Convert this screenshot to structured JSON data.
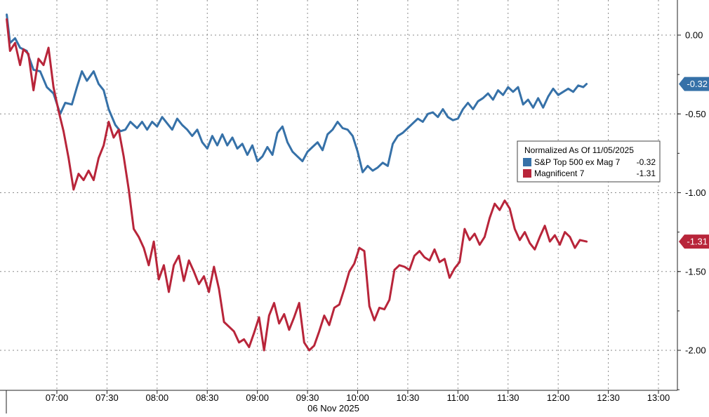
{
  "chart_data": {
    "type": "line",
    "xlabel": "06 Nov 2025",
    "ylabel": "",
    "title": "",
    "x_ticks": [
      "07:00",
      "07:30",
      "08:00",
      "08:30",
      "09:00",
      "09:30",
      "10:00",
      "10:30",
      "11:00",
      "11:30",
      "12:00",
      "12:30",
      "13:00"
    ],
    "y_ticks": [
      "0.00",
      "-0.50",
      "-1.00",
      "-1.50",
      "-2.00"
    ],
    "y_tick_values": [
      0,
      -0.5,
      -1.0,
      -1.5,
      -2.0
    ],
    "xlim": [
      "06:30",
      "13:10"
    ],
    "ylim": [
      -2.26,
      0.18
    ],
    "grid": true,
    "legend": {
      "title": "Normalized As Of 11/05/2025",
      "placement": "right",
      "entries": [
        {
          "label": "S&P Top 500 ex Mag 7",
          "value": "-0.32"
        },
        {
          "label": "Magnificent 7",
          "value": "-1.31"
        }
      ]
    },
    "series": [
      {
        "name": "S&P Top 500 ex Mag 7",
        "color": "#3671a8",
        "last_label": "-0.32",
        "points": [
          [
            "06:30",
            0.13
          ],
          [
            "06:32",
            -0.05
          ],
          [
            "06:35",
            -0.02
          ],
          [
            "06:38",
            -0.08
          ],
          [
            "06:42",
            -0.1
          ],
          [
            "06:46",
            -0.22
          ],
          [
            "06:50",
            -0.23
          ],
          [
            "06:54",
            -0.33
          ],
          [
            "06:58",
            -0.37
          ],
          [
            "07:02",
            -0.5
          ],
          [
            "07:05",
            -0.43
          ],
          [
            "07:09",
            -0.44
          ],
          [
            "07:12",
            -0.33
          ],
          [
            "07:15",
            -0.23
          ],
          [
            "07:18",
            -0.29
          ],
          [
            "07:22",
            -0.23
          ],
          [
            "07:25",
            -0.31
          ],
          [
            "07:28",
            -0.35
          ],
          [
            "07:31",
            -0.47
          ],
          [
            "07:35",
            -0.57
          ],
          [
            "07:38",
            -0.61
          ],
          [
            "07:41",
            -0.6
          ],
          [
            "07:44",
            -0.55
          ],
          [
            "07:48",
            -0.59
          ],
          [
            "07:51",
            -0.55
          ],
          [
            "07:54",
            -0.6
          ],
          [
            "07:57",
            -0.55
          ],
          [
            "08:00",
            -0.58
          ],
          [
            "08:03",
            -0.52
          ],
          [
            "08:06",
            -0.56
          ],
          [
            "08:09",
            -0.6
          ],
          [
            "08:12",
            -0.53
          ],
          [
            "08:15",
            -0.57
          ],
          [
            "08:18",
            -0.6
          ],
          [
            "08:21",
            -0.64
          ],
          [
            "08:24",
            -0.6
          ],
          [
            "08:27",
            -0.68
          ],
          [
            "08:30",
            -0.72
          ],
          [
            "08:33",
            -0.64
          ],
          [
            "08:36",
            -0.7
          ],
          [
            "08:39",
            -0.63
          ],
          [
            "08:42",
            -0.7
          ],
          [
            "08:45",
            -0.65
          ],
          [
            "08:48",
            -0.72
          ],
          [
            "08:51",
            -0.69
          ],
          [
            "08:54",
            -0.76
          ],
          [
            "08:57",
            -0.7
          ],
          [
            "09:00",
            -0.8
          ],
          [
            "09:03",
            -0.77
          ],
          [
            "09:06",
            -0.71
          ],
          [
            "09:09",
            -0.76
          ],
          [
            "09:12",
            -0.62
          ],
          [
            "09:15",
            -0.58
          ],
          [
            "09:18",
            -0.68
          ],
          [
            "09:21",
            -0.74
          ],
          [
            "09:24",
            -0.77
          ],
          [
            "09:27",
            -0.8
          ],
          [
            "09:30",
            -0.74
          ],
          [
            "09:33",
            -0.71
          ],
          [
            "09:36",
            -0.68
          ],
          [
            "09:39",
            -0.73
          ],
          [
            "09:42",
            -0.63
          ],
          [
            "09:45",
            -0.6
          ],
          [
            "09:48",
            -0.55
          ],
          [
            "09:51",
            -0.59
          ],
          [
            "09:54",
            -0.6
          ],
          [
            "09:57",
            -0.64
          ],
          [
            "10:00",
            -0.74
          ],
          [
            "10:03",
            -0.87
          ],
          [
            "10:06",
            -0.83
          ],
          [
            "10:09",
            -0.86
          ],
          [
            "10:12",
            -0.84
          ],
          [
            "10:15",
            -0.81
          ],
          [
            "10:18",
            -0.83
          ],
          [
            "10:21",
            -0.69
          ],
          [
            "10:24",
            -0.64
          ],
          [
            "10:27",
            -0.62
          ],
          [
            "10:30",
            -0.59
          ],
          [
            "10:33",
            -0.56
          ],
          [
            "10:36",
            -0.53
          ],
          [
            "10:39",
            -0.55
          ],
          [
            "10:42",
            -0.5
          ],
          [
            "10:45",
            -0.49
          ],
          [
            "10:48",
            -0.52
          ],
          [
            "10:51",
            -0.47
          ],
          [
            "10:54",
            -0.52
          ],
          [
            "10:57",
            -0.54
          ],
          [
            "11:00",
            -0.53
          ],
          [
            "11:03",
            -0.47
          ],
          [
            "11:06",
            -0.43
          ],
          [
            "11:09",
            -0.47
          ],
          [
            "11:12",
            -0.42
          ],
          [
            "11:15",
            -0.4
          ],
          [
            "11:18",
            -0.37
          ],
          [
            "11:21",
            -0.41
          ],
          [
            "11:24",
            -0.35
          ],
          [
            "11:27",
            -0.38
          ],
          [
            "11:30",
            -0.33
          ],
          [
            "11:33",
            -0.36
          ],
          [
            "11:36",
            -0.33
          ],
          [
            "11:39",
            -0.44
          ],
          [
            "11:42",
            -0.41
          ],
          [
            "11:45",
            -0.46
          ],
          [
            "11:48",
            -0.4
          ],
          [
            "11:51",
            -0.46
          ],
          [
            "11:54",
            -0.39
          ],
          [
            "11:57",
            -0.34
          ],
          [
            "12:00",
            -0.38
          ],
          [
            "12:03",
            -0.36
          ],
          [
            "12:06",
            -0.34
          ],
          [
            "12:09",
            -0.36
          ],
          [
            "12:12",
            -0.32
          ],
          [
            "12:15",
            -0.33
          ],
          [
            "12:17",
            -0.31
          ]
        ]
      },
      {
        "name": "Magnificent 7",
        "color": "#b8253a",
        "last_label": "-1.31",
        "points": [
          [
            "06:30",
            0.1
          ],
          [
            "06:32",
            -0.1
          ],
          [
            "06:35",
            -0.05
          ],
          [
            "06:38",
            -0.19
          ],
          [
            "06:40",
            -0.09
          ],
          [
            "06:43",
            -0.12
          ],
          [
            "06:46",
            -0.35
          ],
          [
            "06:49",
            -0.15
          ],
          [
            "06:52",
            -0.19
          ],
          [
            "06:55",
            -0.08
          ],
          [
            "06:58",
            -0.33
          ],
          [
            "07:01",
            -0.48
          ],
          [
            "07:04",
            -0.61
          ],
          [
            "07:07",
            -0.78
          ],
          [
            "07:10",
            -0.98
          ],
          [
            "07:13",
            -0.88
          ],
          [
            "07:16",
            -0.92
          ],
          [
            "07:19",
            -0.86
          ],
          [
            "07:22",
            -0.92
          ],
          [
            "07:25",
            -0.78
          ],
          [
            "07:28",
            -0.7
          ],
          [
            "07:31",
            -0.55
          ],
          [
            "07:34",
            -0.65
          ],
          [
            "07:37",
            -0.6
          ],
          [
            "07:40",
            -0.77
          ],
          [
            "07:43",
            -0.98
          ],
          [
            "07:46",
            -1.23
          ],
          [
            "07:49",
            -1.28
          ],
          [
            "07:52",
            -1.35
          ],
          [
            "07:55",
            -1.46
          ],
          [
            "07:58",
            -1.31
          ],
          [
            "08:01",
            -1.55
          ],
          [
            "08:04",
            -1.46
          ],
          [
            "08:07",
            -1.63
          ],
          [
            "08:10",
            -1.46
          ],
          [
            "08:13",
            -1.4
          ],
          [
            "08:16",
            -1.56
          ],
          [
            "08:19",
            -1.43
          ],
          [
            "08:22",
            -1.5
          ],
          [
            "08:25",
            -1.58
          ],
          [
            "08:28",
            -1.53
          ],
          [
            "08:31",
            -1.63
          ],
          [
            "08:34",
            -1.47
          ],
          [
            "08:37",
            -1.61
          ],
          [
            "08:40",
            -1.82
          ],
          [
            "08:43",
            -1.85
          ],
          [
            "08:46",
            -1.88
          ],
          [
            "08:49",
            -1.95
          ],
          [
            "08:52",
            -1.93
          ],
          [
            "08:55",
            -1.98
          ],
          [
            "08:58",
            -1.89
          ],
          [
            "09:01",
            -1.79
          ],
          [
            "09:04",
            -2.0
          ],
          [
            "09:07",
            -1.78
          ],
          [
            "09:10",
            -1.7
          ],
          [
            "09:13",
            -1.83
          ],
          [
            "09:16",
            -1.77
          ],
          [
            "09:19",
            -1.87
          ],
          [
            "09:22",
            -1.79
          ],
          [
            "09:25",
            -1.7
          ],
          [
            "09:28",
            -1.95
          ],
          [
            "09:31",
            -2.0
          ],
          [
            "09:34",
            -1.97
          ],
          [
            "09:37",
            -1.88
          ],
          [
            "09:40",
            -1.78
          ],
          [
            "09:43",
            -1.84
          ],
          [
            "09:46",
            -1.73
          ],
          [
            "09:49",
            -1.71
          ],
          [
            "09:52",
            -1.61
          ],
          [
            "09:55",
            -1.5
          ],
          [
            "09:58",
            -1.45
          ],
          [
            "10:01",
            -1.35
          ],
          [
            "10:04",
            -1.37
          ],
          [
            "10:07",
            -1.72
          ],
          [
            "10:10",
            -1.81
          ],
          [
            "10:13",
            -1.73
          ],
          [
            "10:16",
            -1.74
          ],
          [
            "10:19",
            -1.68
          ],
          [
            "10:22",
            -1.49
          ],
          [
            "10:25",
            -1.46
          ],
          [
            "10:28",
            -1.47
          ],
          [
            "10:31",
            -1.49
          ],
          [
            "10:34",
            -1.4
          ],
          [
            "10:37",
            -1.37
          ],
          [
            "10:40",
            -1.41
          ],
          [
            "10:43",
            -1.43
          ],
          [
            "10:46",
            -1.36
          ],
          [
            "10:49",
            -1.44
          ],
          [
            "10:52",
            -1.42
          ],
          [
            "10:55",
            -1.54
          ],
          [
            "10:58",
            -1.48
          ],
          [
            "11:01",
            -1.44
          ],
          [
            "11:04",
            -1.23
          ],
          [
            "11:07",
            -1.3
          ],
          [
            "11:10",
            -1.26
          ],
          [
            "11:13",
            -1.33
          ],
          [
            "11:16",
            -1.28
          ],
          [
            "11:19",
            -1.16
          ],
          [
            "11:22",
            -1.07
          ],
          [
            "11:25",
            -1.11
          ],
          [
            "11:28",
            -1.05
          ],
          [
            "11:31",
            -1.1
          ],
          [
            "11:34",
            -1.23
          ],
          [
            "11:37",
            -1.3
          ],
          [
            "11:40",
            -1.25
          ],
          [
            "11:43",
            -1.32
          ],
          [
            "11:46",
            -1.36
          ],
          [
            "11:49",
            -1.28
          ],
          [
            "11:52",
            -1.21
          ],
          [
            "11:55",
            -1.31
          ],
          [
            "11:58",
            -1.27
          ],
          [
            "12:01",
            -1.33
          ],
          [
            "12:04",
            -1.25
          ],
          [
            "12:07",
            -1.28
          ],
          [
            "12:10",
            -1.35
          ],
          [
            "12:13",
            -1.3
          ],
          [
            "12:17",
            -1.31
          ]
        ]
      }
    ]
  }
}
